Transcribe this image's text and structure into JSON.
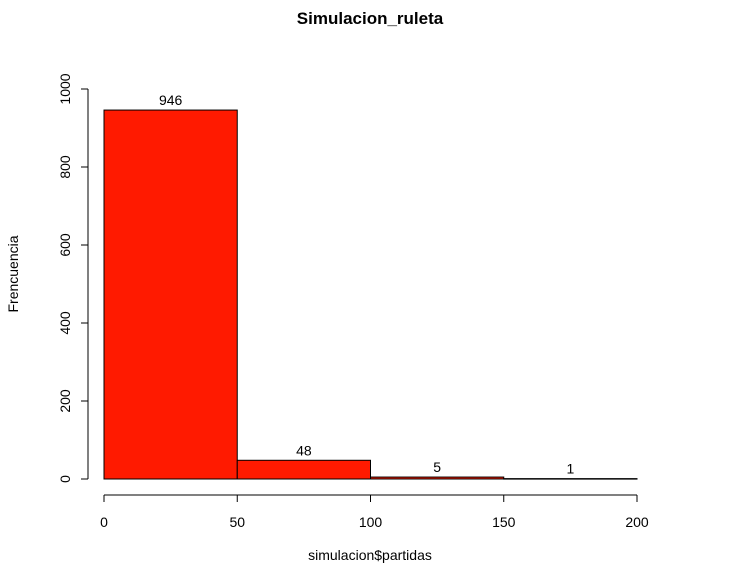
{
  "chart_data": {
    "type": "bar",
    "title": "Simulacion_ruleta",
    "xlabel": "simulacion$partidas",
    "ylabel": "Frencuencia",
    "bins": [
      {
        "from": 0,
        "to": 50,
        "count": 946
      },
      {
        "from": 50,
        "to": 100,
        "count": 48
      },
      {
        "from": 100,
        "to": 150,
        "count": 5
      },
      {
        "from": 150,
        "to": 200,
        "count": 1
      }
    ],
    "xlim": [
      0,
      200
    ],
    "ylim": [
      0,
      1000
    ],
    "xticks": [
      0,
      50,
      100,
      150,
      200
    ],
    "yticks": [
      0,
      200,
      400,
      600,
      800,
      1000
    ],
    "bar_color": "#ff1a00",
    "grid": false,
    "show_data_labels": true
  }
}
